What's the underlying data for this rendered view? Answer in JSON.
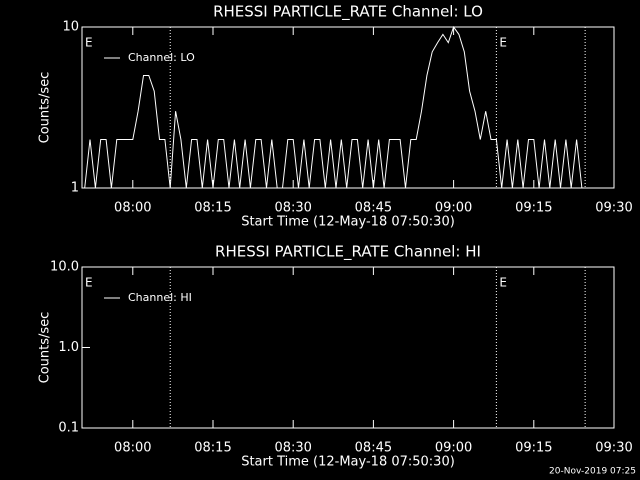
{
  "chart_data": [
    {
      "type": "line",
      "title": "RHESSI PARTICLE_RATE Channel: LO",
      "x_label": "Start Time (12-May-18 07:50:30)",
      "y_label": "Counts/sec",
      "xlim": [
        470.5,
        570
      ],
      "xticks": [
        {
          "value": 480,
          "label": "08:00"
        },
        {
          "value": 495,
          "label": "08:15"
        },
        {
          "value": 510,
          "label": "08:30"
        },
        {
          "value": 525,
          "label": "08:45"
        },
        {
          "value": 540,
          "label": "09:00"
        },
        {
          "value": 555,
          "label": "09:15"
        },
        {
          "value": 570,
          "label": "09:30"
        }
      ],
      "ylim": [
        1,
        10
      ],
      "yticks": [
        1,
        10
      ],
      "ylog": true,
      "vlines": [
        487,
        548,
        564.6
      ],
      "annotations": [
        {
          "text": "E",
          "x": 470.5
        },
        {
          "text": "E",
          "x": 548
        }
      ],
      "x": [
        471,
        472,
        473,
        474,
        475,
        476,
        477,
        478,
        479,
        480,
        481,
        482,
        483,
        484,
        485,
        486,
        487,
        488,
        489,
        490,
        491,
        492,
        493,
        494,
        495,
        496,
        497,
        498,
        499,
        500,
        501,
        502,
        503,
        504,
        505,
        506,
        507,
        508,
        509,
        510,
        511,
        512,
        513,
        514,
        515,
        516,
        517,
        518,
        519,
        520,
        521,
        522,
        523,
        524,
        525,
        526,
        527,
        528,
        529,
        530,
        531,
        532,
        533,
        534,
        535,
        536,
        537,
        538,
        539,
        540,
        541,
        542,
        543,
        544,
        545,
        546,
        547,
        548,
        549,
        550,
        551,
        552,
        553,
        554,
        555,
        556,
        557,
        558,
        559,
        560,
        561,
        562,
        563,
        564
      ],
      "series": [
        {
          "name": "Channel: LO",
          "color": "#ffffff",
          "values": [
            1,
            2,
            1,
            2,
            2,
            1,
            2,
            2,
            2,
            2,
            3,
            5,
            5,
            4,
            2,
            2,
            1,
            3,
            2,
            1,
            2,
            2,
            1,
            2,
            1,
            2,
            2,
            1,
            2,
            1,
            2,
            1,
            2,
            2,
            1,
            2,
            1,
            1,
            2,
            2,
            1,
            2,
            1,
            2,
            2,
            1,
            2,
            1,
            2,
            1,
            2,
            2,
            1,
            2,
            1,
            2,
            1,
            2,
            2,
            2,
            1,
            2,
            2,
            3,
            5,
            7,
            8,
            9,
            8,
            10,
            9,
            7,
            4,
            3,
            2,
            3,
            2,
            2,
            1,
            2,
            1,
            2,
            1,
            2,
            2,
            1,
            2,
            1,
            2,
            1,
            2,
            1,
            2,
            1
          ]
        }
      ]
    },
    {
      "type": "line",
      "title": "RHESSI PARTICLE_RATE Channel: HI",
      "x_label": "Start Time (12-May-18 07:50:30)",
      "y_label": "Counts/sec",
      "xlim": [
        470.5,
        570
      ],
      "xticks": [
        {
          "value": 480,
          "label": "08:00"
        },
        {
          "value": 495,
          "label": "08:15"
        },
        {
          "value": 510,
          "label": "08:30"
        },
        {
          "value": 525,
          "label": "08:45"
        },
        {
          "value": 540,
          "label": "09:00"
        },
        {
          "value": 555,
          "label": "09:15"
        },
        {
          "value": 570,
          "label": "09:30"
        }
      ],
      "ylim": [
        0.1,
        10
      ],
      "yticks": [
        0.1,
        {
          "value": 1,
          "label": "1.0"
        },
        {
          "value": 10,
          "label": "10.0"
        }
      ],
      "ylog": true,
      "vlines": [
        487,
        548,
        564.6
      ],
      "annotations": [
        {
          "text": "E",
          "x": 470.5
        },
        {
          "text": "E",
          "x": 548
        }
      ],
      "x": [],
      "series": [
        {
          "name": "Channel: HI",
          "color": "#ffffff",
          "values": []
        }
      ]
    }
  ],
  "footer": "20-Nov-2019 07:25"
}
